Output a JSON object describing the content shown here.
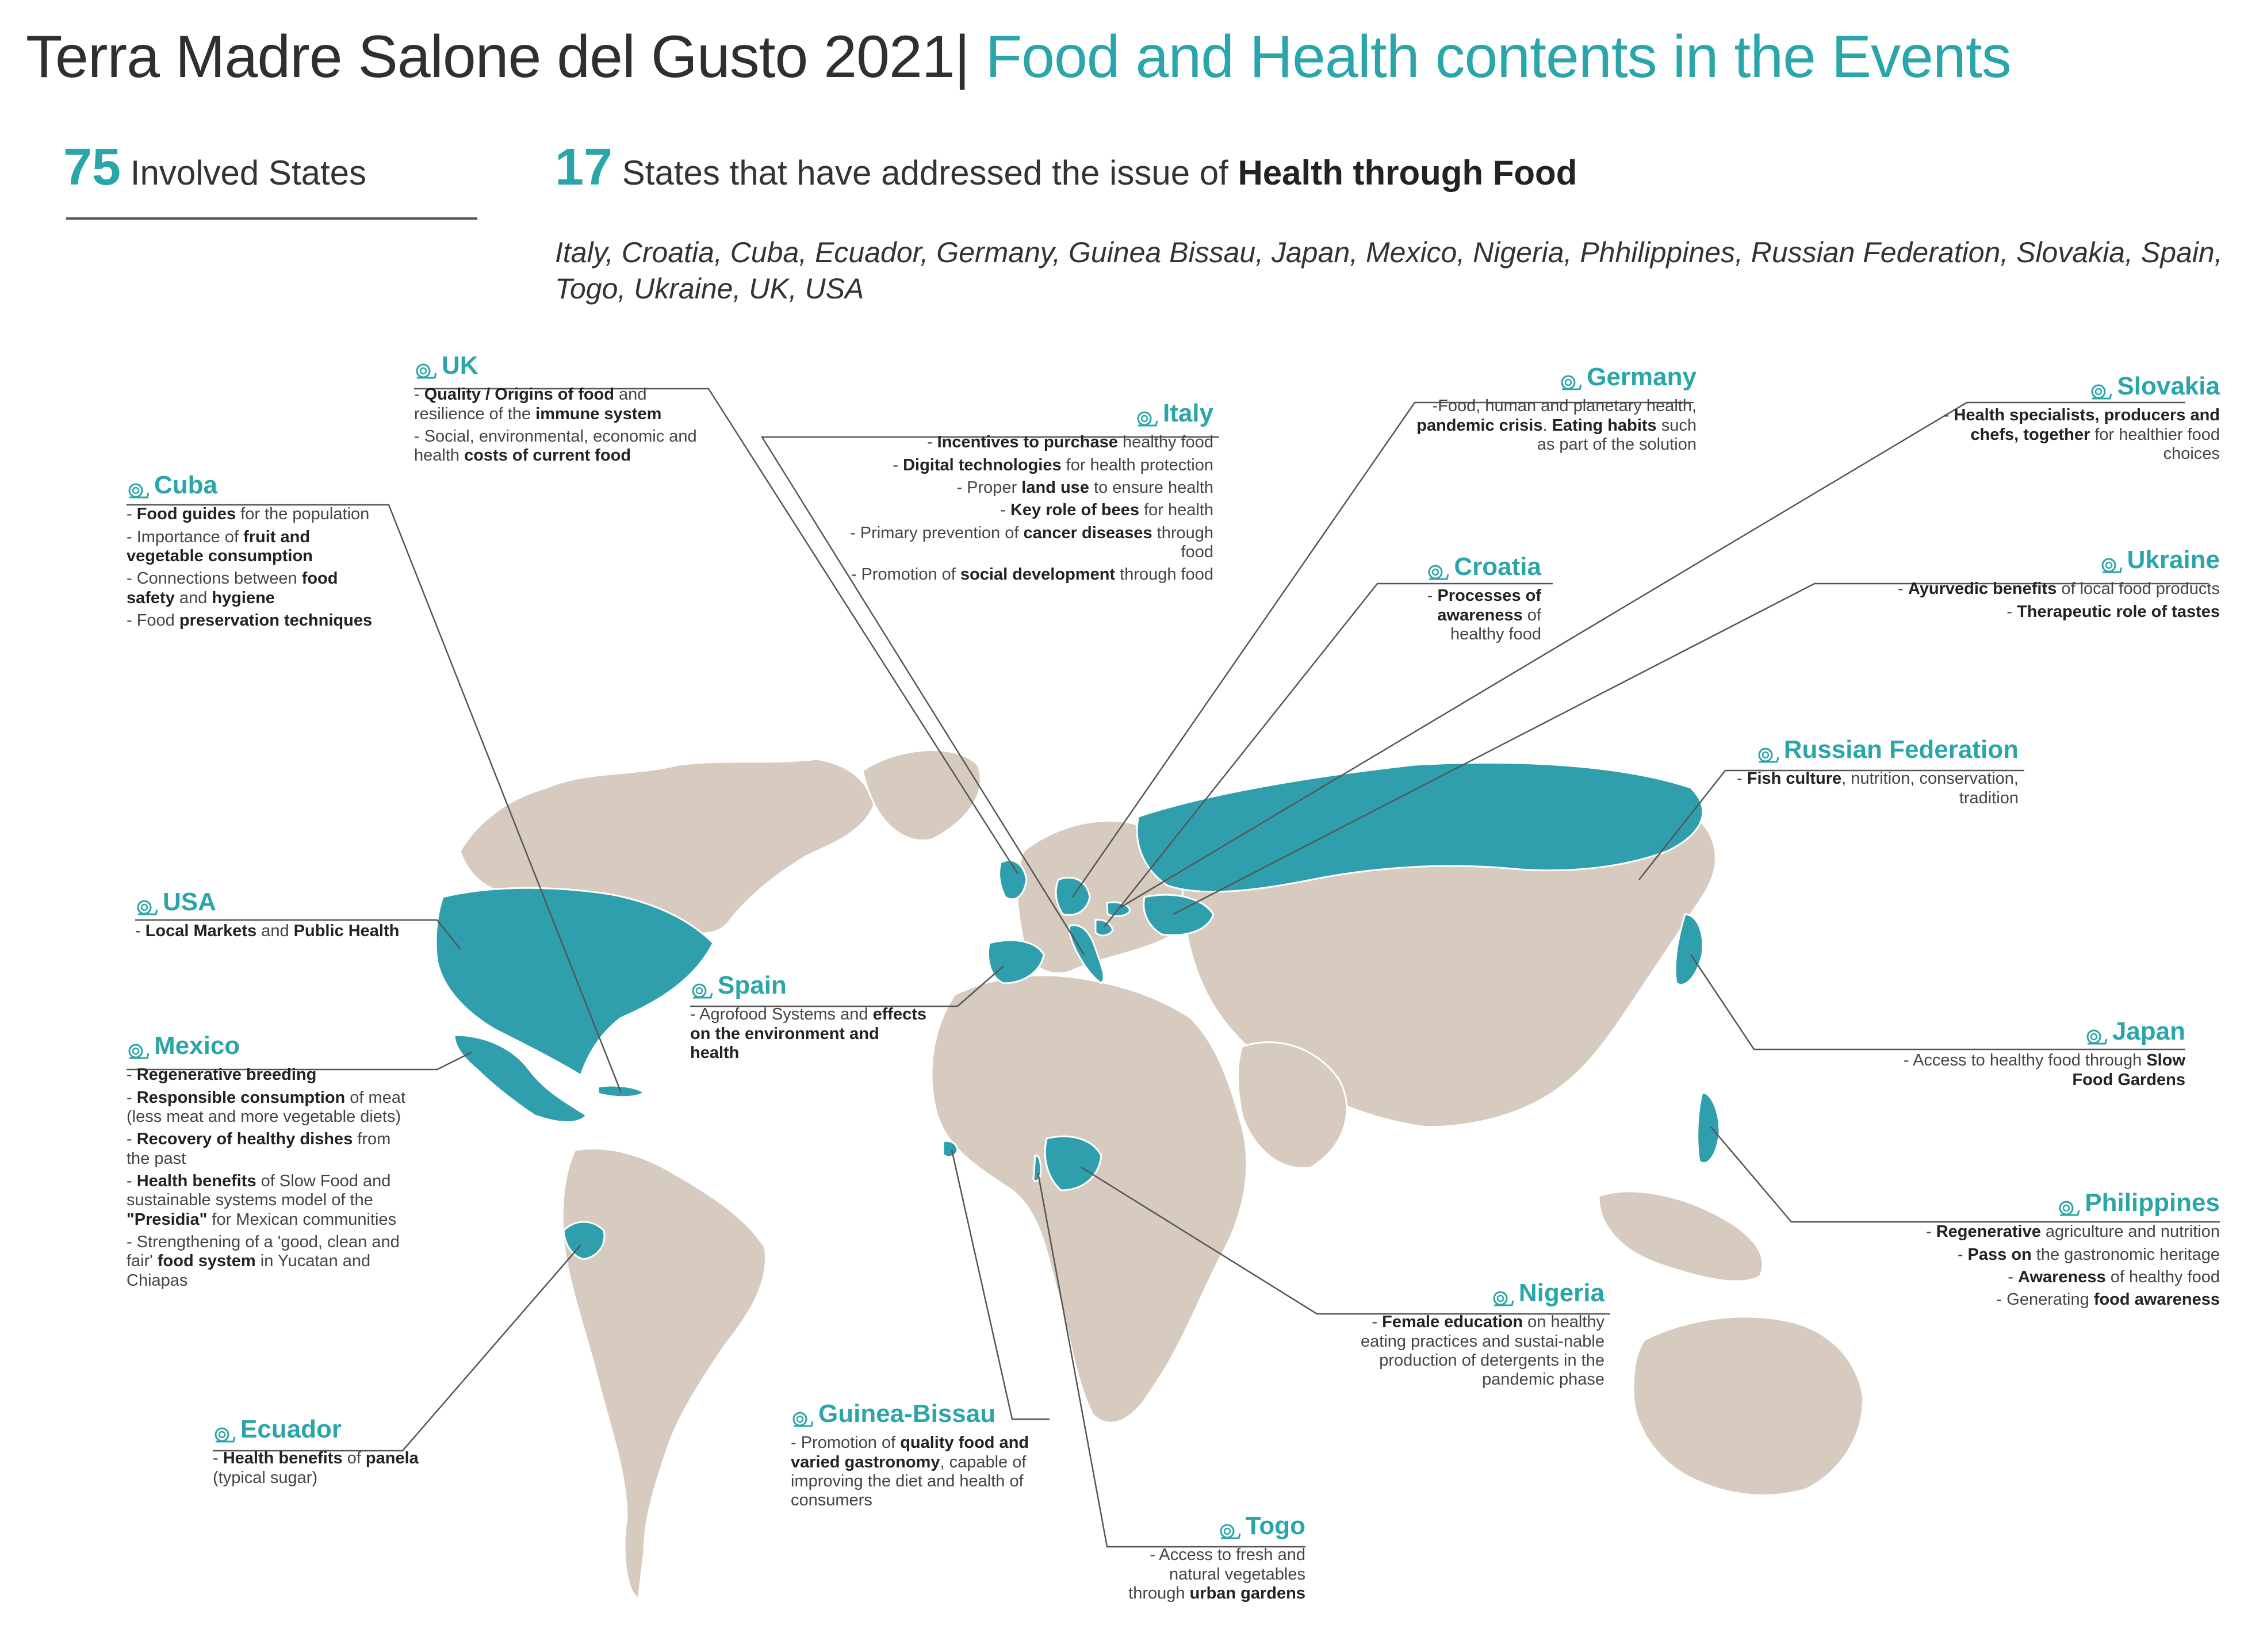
{
  "title": {
    "part1": "Terra Madre Salone del Gusto 2021|",
    "part2": "Food and Health contents in the Events"
  },
  "stats": {
    "involved_num": "75",
    "involved_label": "Involved States",
    "health_num": "17",
    "health_label_pre": "States that have addressed the issue of",
    "health_label_bold": "Health through Food"
  },
  "countries_list": "Italy, Croatia, Cuba, Ecuador, Germany, Guinea Bissau, Japan, Mexico, Nigeria, Phhilippines, Russian Federation, Slovakia, Spain, Togo, Ukraine, UK, USA",
  "colors": {
    "accent": "#2aa5a9",
    "land": "#d6cbbe",
    "highlight": "#2f9fad",
    "text": "#333333",
    "icon": "snail-icon"
  },
  "boxes": {
    "uk": {
      "name": "UK",
      "lines": [
        [
          {
            "t": "- "
          },
          {
            "t": "Quality / Origins of food",
            "b": true
          },
          {
            "t": " and resilience of the "
          },
          {
            "t": "immune system",
            "b": true
          }
        ],
        [
          {
            "t": "- Social, environmental, economic and health "
          },
          {
            "t": "costs of current food",
            "b": true
          }
        ]
      ]
    },
    "cuba": {
      "name": "Cuba",
      "lines": [
        [
          {
            "t": "- "
          },
          {
            "t": "Food guides",
            "b": true
          },
          {
            "t": " for the population"
          }
        ],
        [
          {
            "t": "- Importance of "
          },
          {
            "t": "fruit and vegetable consumption",
            "b": true
          }
        ],
        [
          {
            "t": "- Connections between "
          },
          {
            "t": "food safety",
            "b": true
          },
          {
            "t": " and "
          },
          {
            "t": "hygiene",
            "b": true
          }
        ],
        [
          {
            "t": "- Food "
          },
          {
            "t": "preservation techniques",
            "b": true
          }
        ]
      ]
    },
    "italy": {
      "name": "Italy",
      "lines": [
        [
          {
            "t": "- "
          },
          {
            "t": "Incentives to purchase",
            "b": true
          },
          {
            "t": " healthy food"
          }
        ],
        [
          {
            "t": "- "
          },
          {
            "t": "Digital technologies",
            "b": true
          },
          {
            "t": " for health protection"
          }
        ],
        [
          {
            "t": "- Proper "
          },
          {
            "t": "land use",
            "b": true
          },
          {
            "t": " to ensure health"
          }
        ],
        [
          {
            "t": "- "
          },
          {
            "t": "Key role of bees",
            "b": true
          },
          {
            "t": " for health"
          }
        ],
        [
          {
            "t": "- Primary prevention of "
          },
          {
            "t": "cancer diseases",
            "b": true
          },
          {
            "t": " through food"
          }
        ],
        [
          {
            "t": "- Promotion of "
          },
          {
            "t": "social development",
            "b": true
          },
          {
            "t": " through food"
          }
        ]
      ]
    },
    "germany": {
      "name": "Germany",
      "lines": [
        [
          {
            "t": "-Food, human and planetary health, "
          },
          {
            "t": "pandemic crisis",
            "b": true
          },
          {
            "t": ". "
          },
          {
            "t": "Eating habits",
            "b": true
          },
          {
            "t": " such as part of the solution"
          }
        ]
      ]
    },
    "slovakia": {
      "name": "Slovakia",
      "lines": [
        [
          {
            "t": "-  "
          },
          {
            "t": "Health specialists, producers and chefs, together",
            "b": true
          },
          {
            "t": " for healthier food choices"
          }
        ]
      ]
    },
    "croatia": {
      "name": "Croatia",
      "lines": [
        [
          {
            "t": "- "
          },
          {
            "t": "Processes of awareness",
            "b": true
          },
          {
            "t": " of healthy food"
          }
        ]
      ]
    },
    "ukraine": {
      "name": "Ukraine",
      "lines": [
        [
          {
            "t": "- "
          },
          {
            "t": "Ayurvedic benefits",
            "b": true
          },
          {
            "t": " of local food products"
          }
        ],
        [
          {
            "t": "- "
          },
          {
            "t": "Therapeutic role of tastes",
            "b": true
          }
        ]
      ]
    },
    "russia": {
      "name": "Russian Federation",
      "lines": [
        [
          {
            "t": "- "
          },
          {
            "t": "Fish culture",
            "b": true
          },
          {
            "t": ", nutrition, conservation, tradition"
          }
        ]
      ]
    },
    "usa": {
      "name": "USA",
      "lines": [
        [
          {
            "t": "- "
          },
          {
            "t": "Local Markets",
            "b": true
          },
          {
            "t": "  and "
          },
          {
            "t": "Public Health",
            "b": true
          }
        ]
      ]
    },
    "spain": {
      "name": "Spain",
      "lines": [
        [
          {
            "t": "- Agrofood Systems and "
          },
          {
            "t": "effects on the environment and health",
            "b": true
          }
        ]
      ]
    },
    "mexico": {
      "name": "Mexico",
      "lines": [
        [
          {
            "t": "- "
          },
          {
            "t": "Regenerative breeding",
            "b": true
          }
        ],
        [
          {
            "t": "- "
          },
          {
            "t": "Responsible consumption",
            "b": true
          },
          {
            "t": " of meat (less meat and more vegetable diets)"
          }
        ],
        [
          {
            "t": "- "
          },
          {
            "t": "Recovery of healthy dishes",
            "b": true
          },
          {
            "t": " from the past"
          }
        ],
        [
          {
            "t": "- "
          },
          {
            "t": "Health benefits",
            "b": true
          },
          {
            "t": " of Slow Food and sustainable systems model of the "
          },
          {
            "t": "\"Presidia\"",
            "b": true
          },
          {
            "t": " for Mexican communities"
          }
        ],
        [
          {
            "t": "- Strengthening of a 'good, clean and fair' "
          },
          {
            "t": "food system",
            "b": true
          },
          {
            "t": " in Yucatan and Chiapas"
          }
        ]
      ]
    },
    "japan": {
      "name": "Japan",
      "lines": [
        [
          {
            "t": "- Access to healthy food through "
          },
          {
            "t": "Slow Food Gardens",
            "b": true
          }
        ]
      ]
    },
    "philippines": {
      "name": "Philippines",
      "lines": [
        [
          {
            "t": "- "
          },
          {
            "t": "Regenerative",
            "b": true
          },
          {
            "t": " agriculture and nutrition"
          }
        ],
        [
          {
            "t": "- "
          },
          {
            "t": "Pass on",
            "b": true
          },
          {
            "t": " the gastronomic heritage"
          }
        ],
        [
          {
            "t": "- "
          },
          {
            "t": "Awareness",
            "b": true
          },
          {
            "t": " of healthy food"
          }
        ],
        [
          {
            "t": "- Generating "
          },
          {
            "t": "food awareness",
            "b": true
          }
        ]
      ]
    },
    "nigeria": {
      "name": "Nigeria",
      "lines": [
        [
          {
            "t": "- "
          },
          {
            "t": "Female education",
            "b": true
          },
          {
            "t": " on healthy eating practices and sustai-nable production of detergents in the pandemic phase"
          }
        ]
      ]
    },
    "ecuador": {
      "name": "Ecuador",
      "lines": [
        [
          {
            "t": "- "
          },
          {
            "t": "Health benefits",
            "b": true
          },
          {
            "t": " of "
          },
          {
            "t": "panela",
            "b": true
          },
          {
            "t": " (typical sugar)"
          }
        ]
      ]
    },
    "guinea": {
      "name": "Guinea-Bissau",
      "lines": [
        [
          {
            "t": "- Promotion of "
          },
          {
            "t": "quality food and varied gastronomy",
            "b": true
          },
          {
            "t": ", capable of improving the diet and health of consumers"
          }
        ]
      ]
    },
    "togo": {
      "name": "Togo",
      "lines": [
        [
          {
            "t": "- Access to fresh and natural vegetables through "
          },
          {
            "t": "urban gardens",
            "b": true
          }
        ]
      ]
    }
  }
}
